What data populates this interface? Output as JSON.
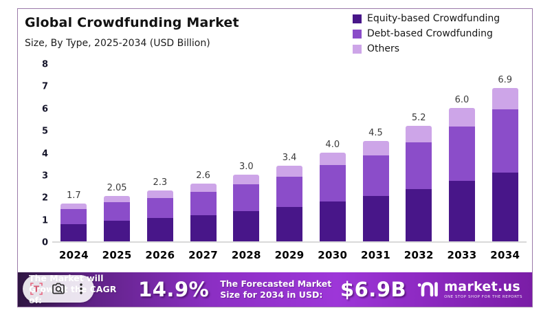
{
  "card": {
    "title": "Global Crowdfunding Market",
    "subtitle": "Size, By Type, 2025-2034 (USD Billion)"
  },
  "legend": [
    {
      "label": "Equity-based Crowdfunding",
      "color": "#481689"
    },
    {
      "label": "Debt-based Crowdfunding",
      "color": "#8B4DC9"
    },
    {
      "label": "Others",
      "color": "#CDA5E8"
    }
  ],
  "chart_data": {
    "type": "bar",
    "stacked": true,
    "title": "Global Crowdfunding Market",
    "subtitle": "Size, By Type, 2025-2034 (USD Billion)",
    "xlabel": "",
    "ylabel": "USD Billion",
    "ylim": [
      0,
      8
    ],
    "yticks": [
      0,
      1,
      2,
      3,
      4,
      5,
      6,
      7,
      8
    ],
    "grid": false,
    "legend_position": "top-right",
    "categories": [
      "2024",
      "2025",
      "2026",
      "2027",
      "2028",
      "2029",
      "2030",
      "2031",
      "2032",
      "2033",
      "2034"
    ],
    "series": [
      {
        "name": "Equity-based Crowdfunding",
        "values": [
          0.78,
          0.92,
          1.04,
          1.17,
          1.35,
          1.55,
          1.8,
          2.05,
          2.35,
          2.72,
          3.1
        ]
      },
      {
        "name": "Debt-based Crowdfunding",
        "values": [
          0.67,
          0.83,
          0.92,
          1.04,
          1.2,
          1.35,
          1.62,
          1.8,
          2.1,
          2.45,
          2.82
        ]
      },
      {
        "name": "Others",
        "values": [
          0.25,
          0.3,
          0.34,
          0.39,
          0.45,
          0.5,
          0.58,
          0.65,
          0.75,
          0.83,
          0.98
        ]
      }
    ],
    "totals": [
      1.7,
      2.05,
      2.3,
      2.6,
      3.0,
      3.4,
      4.0,
      4.5,
      5.2,
      6.0,
      6.9
    ],
    "total_labels": [
      "1.7",
      "2.05",
      "2.3",
      "2.6",
      "3.0",
      "3.4",
      "4.0",
      "4.5",
      "5.2",
      "6.0",
      "6.9"
    ]
  },
  "banner": {
    "cagr_label": "The Market will Grow At the CAGR of:",
    "cagr_value": "14.9%",
    "forecast_label": "The Forecasted Market Size for 2034 in USD:",
    "forecast_value": "$6.9B",
    "brand": "market.us",
    "brand_tagline": "ONE STOP SHOP FOR THE REPORTS"
  },
  "overlay_toolbar": {
    "icons": [
      "text-select-icon",
      "camera-search-icon",
      "more-options-icon"
    ]
  }
}
